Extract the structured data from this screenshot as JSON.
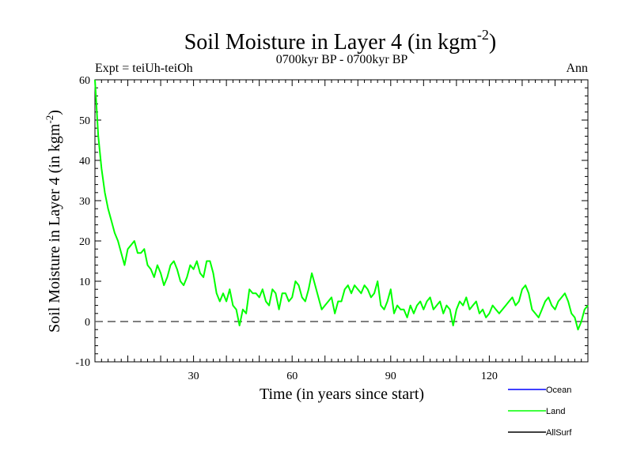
{
  "chart_data": {
    "type": "line",
    "title": "Soil Moisture in Layer 4 (in kgm",
    "title_sup": "-2",
    "title_close": ")",
    "left_subtitle": "Expt = teiUh-teiOh",
    "center_subtitle": "0700kyr BP - 0700kyr BP",
    "right_subtitle": "Ann",
    "xlabel": "Time (in years since start)",
    "ylabel": "Soil Moisture in Layer 4 (in kgm",
    "ylabel_sup": "-2",
    "ylabel_close": ")",
    "xlim": [
      0,
      150
    ],
    "ylim": [
      -10,
      60
    ],
    "xticks": [
      30,
      60,
      90,
      120
    ],
    "yticks": [
      -10,
      0,
      10,
      20,
      30,
      40,
      50,
      60
    ],
    "reference_line": 0,
    "legend": [
      {
        "name": "Ocean",
        "color": "#0000ff"
      },
      {
        "name": "Land",
        "color": "#00ff00"
      },
      {
        "name": "AllSurf",
        "color": "#000000"
      }
    ],
    "series": [
      {
        "name": "Land",
        "color": "#00ff00",
        "x": [
          0,
          1,
          2,
          3,
          4,
          5,
          6,
          7,
          8,
          9,
          10,
          11,
          12,
          13,
          14,
          15,
          16,
          17,
          18,
          19,
          20,
          21,
          22,
          23,
          24,
          25,
          26,
          27,
          28,
          29,
          30,
          31,
          32,
          33,
          34,
          35,
          36,
          37,
          38,
          39,
          40,
          41,
          42,
          43,
          44,
          45,
          46,
          47,
          48,
          49,
          50,
          51,
          52,
          53,
          54,
          55,
          56,
          57,
          58,
          59,
          60,
          61,
          62,
          63,
          64,
          65,
          66,
          67,
          68,
          69,
          70,
          71,
          72,
          73,
          74,
          75,
          76,
          77,
          78,
          79,
          80,
          81,
          82,
          83,
          84,
          85,
          86,
          87,
          88,
          89,
          90,
          91,
          92,
          93,
          94,
          95,
          96,
          97,
          98,
          99,
          100,
          101,
          102,
          103,
          104,
          105,
          106,
          107,
          108,
          109,
          110,
          111,
          112,
          113,
          114,
          115,
          116,
          117,
          118,
          119,
          120,
          121,
          122,
          123,
          124,
          125,
          126,
          127,
          128,
          129,
          130,
          131,
          132,
          133,
          134,
          135,
          136,
          137,
          138,
          139,
          140,
          141,
          142,
          143,
          144,
          145,
          146,
          147,
          148,
          149,
          150
        ],
        "values": [
          60,
          46,
          38,
          32,
          28,
          25,
          22,
          20,
          17,
          14,
          18,
          19,
          20,
          17,
          17,
          18,
          14,
          13,
          11,
          14,
          12,
          9,
          11,
          14,
          15,
          13,
          10,
          9,
          11,
          14,
          13,
          15,
          12,
          11,
          15,
          15,
          12,
          7,
          5,
          7,
          5,
          8,
          4,
          3,
          -1,
          3,
          2,
          8,
          7,
          7,
          6,
          8,
          5,
          4,
          8,
          7,
          3,
          7,
          7,
          5,
          6,
          10,
          9,
          6,
          5,
          8,
          12,
          9,
          6,
          3,
          4,
          5,
          6,
          2,
          5,
          5,
          8,
          9,
          7,
          9,
          8,
          7,
          9,
          8,
          6,
          7,
          10,
          4,
          3,
          5,
          8,
          2,
          4,
          3,
          3,
          1,
          4,
          2,
          4,
          5,
          3,
          5,
          6,
          3,
          4,
          5,
          2,
          4,
          3,
          -1,
          3,
          5,
          4,
          6,
          3,
          4,
          5,
          2,
          3,
          1,
          2,
          4,
          3,
          2,
          3,
          4,
          5,
          6,
          4,
          5,
          8,
          9,
          7,
          3,
          2,
          1,
          3,
          5,
          6,
          4,
          3,
          5,
          6,
          7,
          5,
          2,
          1,
          -2,
          0,
          3,
          4
        ]
      }
    ]
  }
}
